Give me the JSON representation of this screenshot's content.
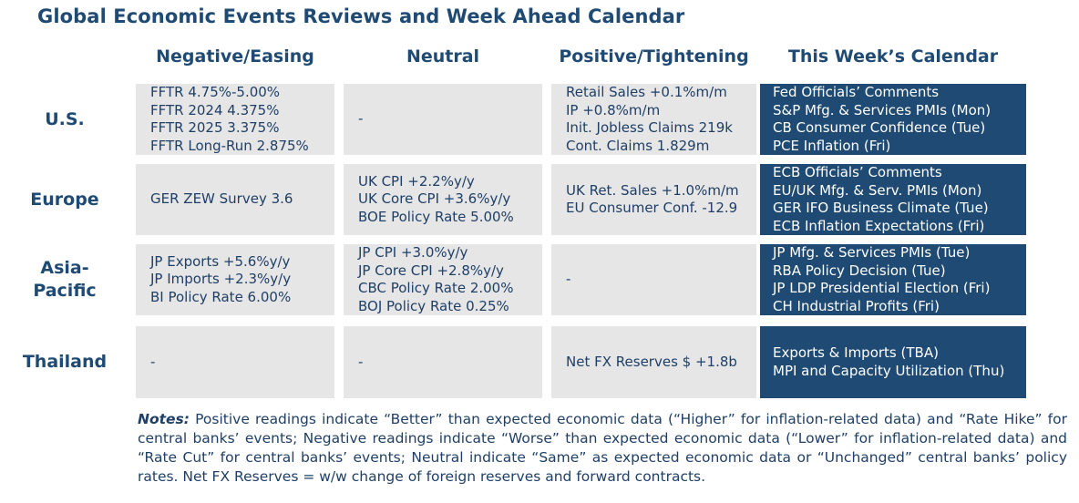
{
  "title": "Global Economic Events Reviews and Week Ahead Calendar",
  "columns": [
    "Negative/Easing",
    "Neutral",
    "Positive/Tightening",
    "This Week’s Calendar"
  ],
  "rows": [
    {
      "label": "U.S.",
      "negative": [
        "FFTR 4.75%-5.00%",
        "FFTR 2024 4.375%",
        "FFTR 2025 3.375%",
        "FFTR Long-Run 2.875%"
      ],
      "neutral": [
        "-"
      ],
      "positive": [
        "Retail Sales +0.1%m/m",
        "IP +0.8%m/m",
        "Init. Jobless Claims 219k",
        "Cont. Claims 1.829m"
      ],
      "calendar": [
        "Fed Officials’ Comments",
        "S&P Mfg. & Services PMIs (Mon)",
        "CB Consumer Confidence (Tue)",
        "PCE Inflation (Fri)"
      ]
    },
    {
      "label": "Europe",
      "negative": [
        "GER ZEW Survey 3.6"
      ],
      "neutral": [
        "UK CPI +2.2%y/y",
        "UK Core CPI +3.6%y/y",
        "BOE Policy Rate 5.00%"
      ],
      "positive": [
        "UK Ret. Sales +1.0%m/m",
        "EU Consumer Conf. -12.9"
      ],
      "calendar": [
        "ECB Officials’ Comments",
        "EU/UK Mfg. & Serv. PMIs (Mon)",
        "GER IFO Business Climate (Tue)",
        "ECB Inflation Expectations (Fri)"
      ]
    },
    {
      "label": "Asia-Pacific",
      "negative": [
        "JP Exports +5.6%y/y",
        "JP Imports +2.3%y/y",
        "BI Policy Rate 6.00%"
      ],
      "neutral": [
        "JP CPI +3.0%y/y",
        "JP Core CPI +2.8%y/y",
        "CBC Policy Rate 2.00%",
        "BOJ Policy Rate 0.25%"
      ],
      "positive": [
        "-"
      ],
      "calendar": [
        "JP Mfg. & Services PMIs (Tue)",
        "RBA Policy Decision (Tue)",
        "JP LDP Presidential Election (Fri)",
        "CH Industrial Profits (Fri)"
      ]
    },
    {
      "label": "Thailand",
      "negative": [
        "-"
      ],
      "neutral": [
        "-"
      ],
      "positive": [
        "Net FX Reserves $ +1.8b"
      ],
      "calendar": [
        "Exports & Imports (TBA)",
        "MPI and Capacity Utilization (Thu)"
      ]
    }
  ],
  "notes": {
    "label": "Notes:",
    "text": "Positive readings indicate “Better” than expected economic data (“Higher” for inflation-related data) and “Rate Hike” for central banks’ events; Negative readings indicate “Worse” than expected economic data (“Lower” for inflation-related data) and “Rate Cut” for central banks’ events; Neutral indicate “Same” as expected economic data or “Unchanged” central banks’ policy rates. Net FX Reserves = w/w change of foreign reserves and forward contracts."
  },
  "colors": {
    "navy": "#1f4a73",
    "cell_gray": "#e6e6e6",
    "text_dark": "#1f3f66",
    "calendar_text": "#ffffff"
  }
}
